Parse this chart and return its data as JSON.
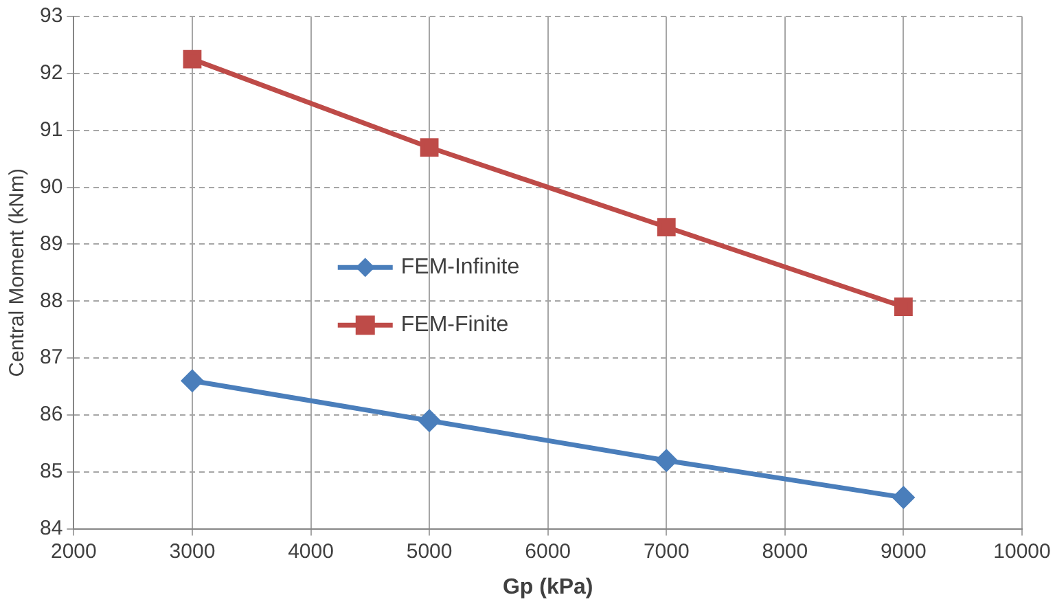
{
  "chart_data": {
    "type": "line",
    "xlabel": "Gp (kPa)",
    "ylabel": "Central Moment (kNm)",
    "x": [
      3000,
      5000,
      7000,
      9000
    ],
    "series": [
      {
        "name": "FEM-Infinite",
        "color": "#4a7ebb",
        "marker": "diamond",
        "values": [
          86.6,
          85.9,
          85.2,
          84.55
        ]
      },
      {
        "name": "FEM-Finite",
        "color": "#be4b48",
        "marker": "square",
        "values": [
          92.25,
          90.7,
          89.3,
          87.9
        ]
      }
    ],
    "xlim": [
      2000,
      10000
    ],
    "xticks": [
      2000,
      3000,
      4000,
      5000,
      6000,
      7000,
      8000,
      9000,
      10000
    ],
    "ylim": [
      84,
      93
    ],
    "yticks": [
      84,
      85,
      86,
      87,
      88,
      89,
      90,
      91,
      92,
      93
    ],
    "grid": true,
    "legend": "left",
    "line_style": "solid"
  }
}
